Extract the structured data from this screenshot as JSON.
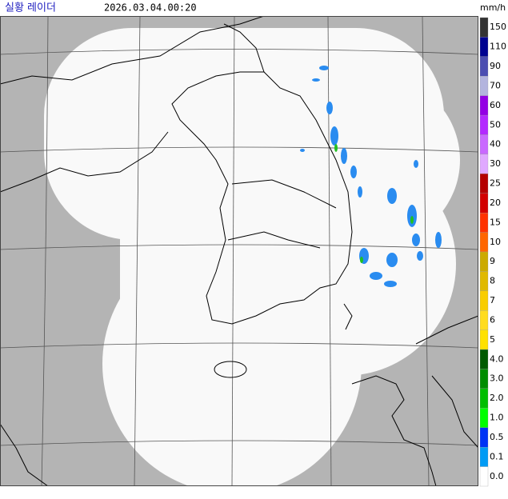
{
  "header": {
    "title": "실황 레이더",
    "timestamp": "2026.03.04.00:20",
    "unit": "mm/h"
  },
  "legend": {
    "items": [
      {
        "label": "150",
        "color": "#333333"
      },
      {
        "label": "110",
        "color": "#000390"
      },
      {
        "label": "90",
        "color": "#4c4eb1"
      },
      {
        "label": "70",
        "color": "#b3b4de"
      },
      {
        "label": "60",
        "color": "#9300e4"
      },
      {
        "label": "50",
        "color": "#b329ff"
      },
      {
        "label": "40",
        "color": "#c969ff"
      },
      {
        "label": "30",
        "color": "#e0a9ff"
      },
      {
        "label": "25",
        "color": "#b40000"
      },
      {
        "label": "20",
        "color": "#d20000"
      },
      {
        "label": "15",
        "color": "#ff3200"
      },
      {
        "label": "10",
        "color": "#ff6600"
      },
      {
        "label": "9",
        "color": "#ccaa00"
      },
      {
        "label": "8",
        "color": "#e0b900"
      },
      {
        "label": "7",
        "color": "#f9cd00"
      },
      {
        "label": "6",
        "color": "#ffdc1f"
      },
      {
        "label": "5",
        "color": "#ffe100"
      },
      {
        "label": "4.0",
        "color": "#005a00"
      },
      {
        "label": "3.0",
        "color": "#008c00"
      },
      {
        "label": "2.0",
        "color": "#00be00"
      },
      {
        "label": "1.0",
        "color": "#00ff00"
      },
      {
        "label": "0.5",
        "color": "#0033f5"
      },
      {
        "label": "0.1",
        "color": "#009bf5"
      },
      {
        "label": "0.0",
        "color": "#ffffff"
      }
    ]
  }
}
